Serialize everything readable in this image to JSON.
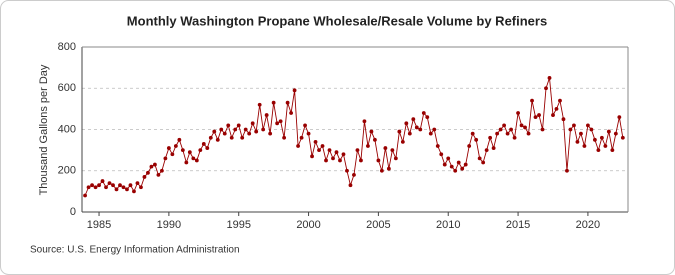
{
  "chart_data": {
    "type": "line",
    "title": "Monthly Washington Propane Wholesale/Resale Volume by Refiners",
    "y_label": "Thousand Gallons per Day",
    "source": "Source: U.S. Energy Information Administration",
    "x": [
      1984,
      1984.25,
      1984.5,
      1984.75,
      1985,
      1985.25,
      1985.5,
      1985.75,
      1986,
      1986.25,
      1986.5,
      1986.75,
      1987,
      1987.25,
      1987.5,
      1987.75,
      1988,
      1988.25,
      1988.5,
      1988.75,
      1989,
      1989.25,
      1989.5,
      1989.75,
      1990,
      1990.25,
      1990.5,
      1990.75,
      1991,
      1991.25,
      1991.5,
      1991.75,
      1992,
      1992.25,
      1992.5,
      1992.75,
      1993,
      1993.25,
      1993.5,
      1993.75,
      1994,
      1994.25,
      1994.5,
      1994.75,
      1995,
      1995.25,
      1995.5,
      1995.75,
      1996,
      1996.25,
      1996.5,
      1996.75,
      1997,
      1997.25,
      1997.5,
      1997.75,
      1998,
      1998.25,
      1998.5,
      1998.75,
      1999,
      1999.25,
      1999.5,
      1999.75,
      2000,
      2000.25,
      2000.5,
      2000.75,
      2001,
      2001.25,
      2001.5,
      2001.75,
      2002,
      2002.25,
      2002.5,
      2002.75,
      2003,
      2003.25,
      2003.5,
      2003.75,
      2004,
      2004.25,
      2004.5,
      2004.75,
      2005,
      2005.25,
      2005.5,
      2005.75,
      2006,
      2006.25,
      2006.5,
      2006.75,
      2007,
      2007.25,
      2007.5,
      2007.75,
      2008,
      2008.25,
      2008.5,
      2008.75,
      2009,
      2009.25,
      2009.5,
      2009.75,
      2010,
      2010.25,
      2010.5,
      2010.75,
      2011,
      2011.25,
      2011.5,
      2011.75,
      2012,
      2012.25,
      2012.5,
      2012.75,
      2013,
      2013.25,
      2013.5,
      2013.75,
      2014,
      2014.25,
      2014.5,
      2014.75,
      2015,
      2015.25,
      2015.5,
      2015.75,
      2016,
      2016.25,
      2016.5,
      2016.75,
      2017,
      2017.25,
      2017.5,
      2017.75,
      2018,
      2018.25,
      2018.5,
      2018.75,
      2019,
      2019.25,
      2019.5,
      2019.75,
      2020,
      2020.25,
      2020.5,
      2020.75,
      2021,
      2021.25,
      2021.5,
      2021.75,
      2022,
      2022.25,
      2022.5
    ],
    "series": [
      {
        "name": "Washington Propane Wholesale/Resale Volume by Refiners",
        "color": "#990000",
        "values": [
          80,
          120,
          130,
          120,
          130,
          150,
          120,
          140,
          130,
          110,
          130,
          120,
          110,
          130,
          100,
          140,
          120,
          170,
          190,
          220,
          230,
          180,
          200,
          260,
          310,
          280,
          320,
          350,
          300,
          240,
          290,
          260,
          250,
          300,
          330,
          310,
          360,
          390,
          350,
          400,
          380,
          420,
          360,
          400,
          420,
          360,
          400,
          380,
          430,
          390,
          520,
          400,
          470,
          380,
          530,
          430,
          440,
          360,
          530,
          480,
          590,
          320,
          360,
          420,
          380,
          270,
          340,
          300,
          320,
          250,
          300,
          260,
          290,
          250,
          280,
          200,
          130,
          180,
          300,
          250,
          440,
          320,
          390,
          350,
          250,
          200,
          310,
          210,
          300,
          260,
          390,
          340,
          430,
          380,
          450,
          410,
          400,
          480,
          460,
          380,
          400,
          320,
          280,
          230,
          260,
          220,
          200,
          240,
          210,
          230,
          320,
          380,
          350,
          260,
          240,
          300,
          360,
          310,
          380,
          400,
          420,
          380,
          400,
          360,
          480,
          420,
          410,
          380,
          540,
          460,
          470,
          400,
          600,
          650,
          470,
          500,
          540,
          450,
          200,
          400,
          420,
          340,
          380,
          320,
          420,
          400,
          350,
          300,
          360,
          320,
          390,
          300,
          380,
          460,
          360
        ]
      }
    ],
    "xlim": [
      1983.78,
      2022.87
    ],
    "ylim": [
      0,
      800
    ],
    "xticks": [
      1985,
      1990,
      1995,
      2000,
      2005,
      2010,
      2015,
      2020
    ],
    "yticks": [
      0,
      200,
      400,
      600,
      800
    ],
    "grid": true
  }
}
